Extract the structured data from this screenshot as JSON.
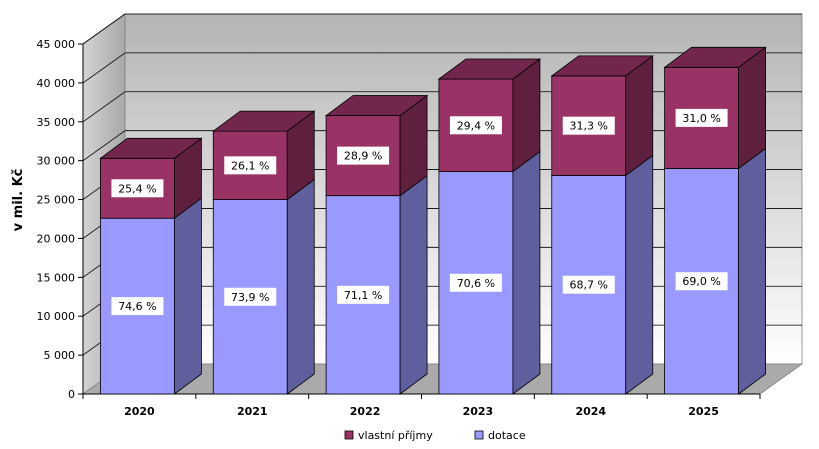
{
  "chart_data": {
    "type": "bar",
    "stacked": true,
    "three_d": true,
    "title": "",
    "xlabel": "",
    "ylabel": "v mil. Kč",
    "ylim": [
      0,
      45000
    ],
    "yticks": [
      0,
      5000,
      10000,
      15000,
      20000,
      25000,
      30000,
      35000,
      40000,
      45000
    ],
    "ytick_labels": [
      "0",
      "5 000",
      "10 000",
      "15 000",
      "20 000",
      "25 000",
      "30 000",
      "35 000",
      "40 000",
      "45 000"
    ],
    "grid": true,
    "legend_position": "bottom",
    "categories": [
      "2020",
      "2021",
      "2022",
      "2023",
      "2024",
      "2025"
    ],
    "series": [
      {
        "name": "dotace",
        "color": "#9999ff",
        "values": [
          22600,
          25000,
          25500,
          28600,
          28100,
          29000
        ],
        "labels": [
          "74,6 %",
          "73,9 %",
          "71,1 %",
          "70,6 %",
          "68,7 %",
          "69,0 %"
        ]
      },
      {
        "name": "vlastní příjmy",
        "color": "#993366",
        "values": [
          7700,
          8800,
          10300,
          11900,
          12800,
          13000
        ],
        "labels": [
          "25,4 %",
          "26,1 %",
          "28,9 %",
          "29,4 %",
          "31,3 %",
          "31,0 %"
        ]
      }
    ],
    "legend": [
      {
        "name": "vlastní příjmy",
        "color": "#993366"
      },
      {
        "name": "dotace",
        "color": "#9999ff"
      }
    ]
  }
}
